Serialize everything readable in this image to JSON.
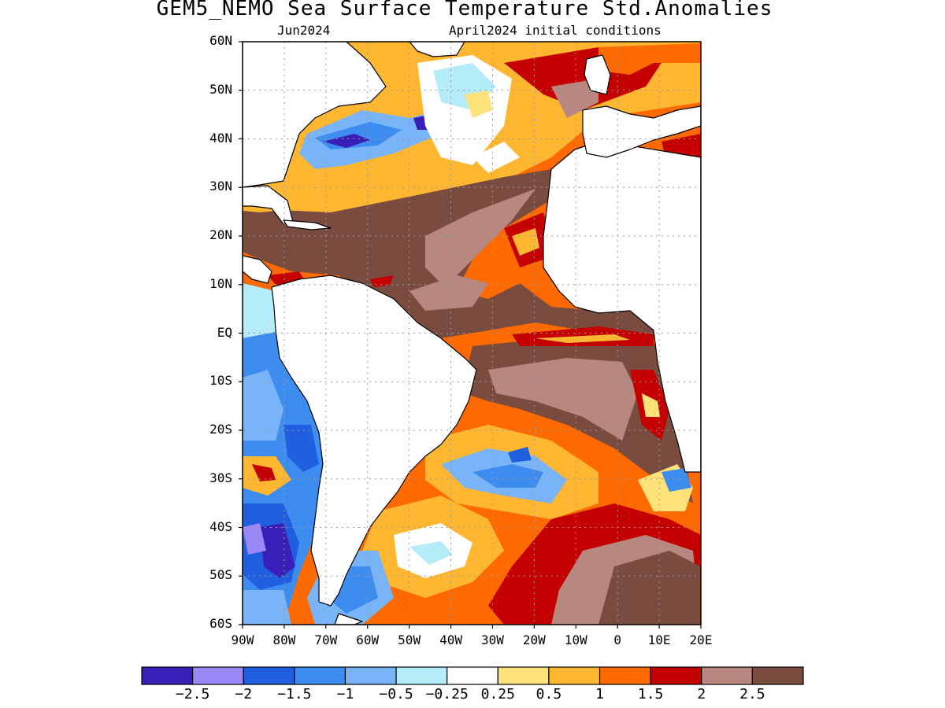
{
  "header": {
    "title": "GEM5_NEMO Sea Surface Temperature Std.Anomalies",
    "valid_month": "Jun2024",
    "init": "April2024 initial conditions"
  },
  "axes": {
    "lat_labels": [
      "60N",
      "50N",
      "40N",
      "30N",
      "20N",
      "10N",
      "EQ",
      "10S",
      "20S",
      "30S",
      "40S",
      "50S",
      "60S"
    ],
    "lon_labels": [
      "90W",
      "80W",
      "70W",
      "60W",
      "50W",
      "40W",
      "30W",
      "20W",
      "10W",
      "0",
      "10E",
      "20E"
    ],
    "lat_range": [
      -60,
      60
    ],
    "lon_range": [
      -90,
      20
    ],
    "grid": true
  },
  "legend": {
    "colors": [
      "#3a1eb8",
      "#9b87f5",
      "#1f5fe0",
      "#3d8df0",
      "#78b4f7",
      "#b4ecf9",
      "#ffffff",
      "#ffe27a",
      "#ffb732",
      "#ff6a00",
      "#c40000",
      "#b88880",
      "#7a4c40"
    ],
    "tick_labels": [
      "-2.5",
      "-2",
      "-1.5",
      "-1",
      "-0.5",
      "-0.25",
      "0.25",
      "0.5",
      "1",
      "1.5",
      "2",
      "2.5"
    ]
  },
  "colors": {
    "land": "#ffffff",
    "coastline": "#000000",
    "grid": "#9a9a9a"
  }
}
